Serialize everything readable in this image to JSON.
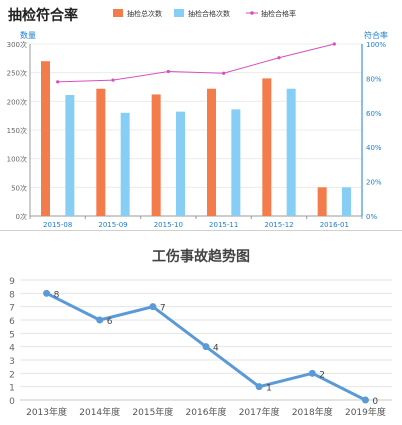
{
  "chart_data": [
    {
      "type": "bar",
      "title": "抽检符合率",
      "legend_position": "top",
      "categories": [
        "2015-08",
        "2015-09",
        "2015-10",
        "2015-11",
        "2015-12",
        "2016-01"
      ],
      "series": [
        {
          "name": "抽检总次数",
          "kind": "bar",
          "axis": "left",
          "color": "#f47c4b",
          "values": [
            270,
            222,
            212,
            222,
            240,
            50
          ]
        },
        {
          "name": "抽检合格次数",
          "kind": "bar",
          "axis": "left",
          "color": "#87cef5",
          "values": [
            211,
            180,
            182,
            186,
            222,
            50
          ]
        },
        {
          "name": "抽检合格率",
          "kind": "line",
          "axis": "right",
          "color": "#d84fc0",
          "values": [
            78,
            79,
            84,
            83,
            92,
            100
          ]
        }
      ],
      "y_left": {
        "label": "数量",
        "ylim": [
          0,
          300
        ],
        "ticks": [
          "0次",
          "50次",
          "100次",
          "150次",
          "200次",
          "250次",
          "300次"
        ]
      },
      "y_right": {
        "label": "符合率",
        "ylim": [
          0,
          100
        ],
        "ticks": [
          "0%",
          "20%",
          "40%",
          "60%",
          "80%",
          "100%"
        ]
      },
      "grid": true
    },
    {
      "type": "line",
      "title": "工伤事故趋势图",
      "categories": [
        "2013年度",
        "2014年度",
        "2015年度",
        "2016年度",
        "2017年度",
        "2018年度",
        "2019年度"
      ],
      "series": [
        {
          "color": "#5b9bd5",
          "values": [
            8,
            6,
            7,
            4,
            1,
            2,
            0
          ]
        }
      ],
      "ylim": [
        0,
        9
      ],
      "yticks": [
        0,
        1,
        2,
        3,
        4,
        5,
        6,
        7,
        8,
        9
      ],
      "data_labels": true,
      "grid": true
    }
  ]
}
